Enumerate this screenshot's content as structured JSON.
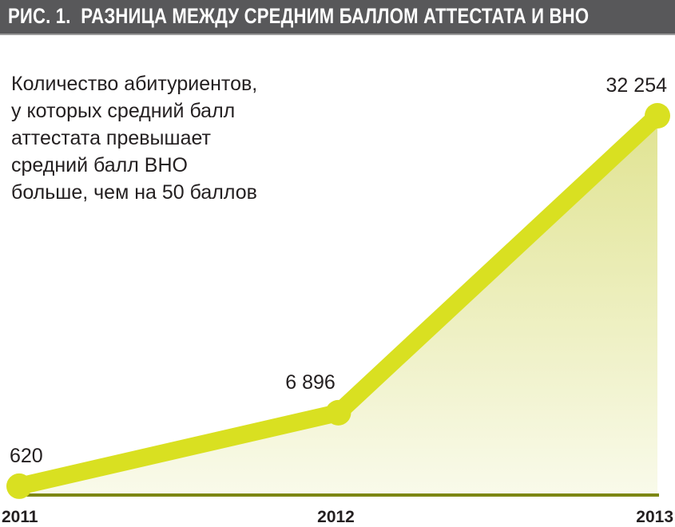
{
  "figure_label": "РИС. 1.",
  "chart_data": {
    "type": "area",
    "title": "РАЗНИЦА МЕЖДУ СРЕДНИМ БАЛЛОМ АТТЕСТАТА И ВНО",
    "annotation_lines": [
      "Количество абитуриентов,",
      "у которых средний балл",
      "аттестата превышает",
      "средний балл ВНО",
      "больше, чем на 50 баллов"
    ],
    "categories": [
      "2011",
      "2012",
      "2013"
    ],
    "values": [
      620,
      6896,
      32254
    ],
    "data_labels": [
      "620",
      "6 896",
      "32 254"
    ],
    "ylim": [
      0,
      32254
    ],
    "grid": false,
    "colors": {
      "line": "#d9e021",
      "fill_top": "#e3e6a0",
      "fill_bottom": "#f8f9e4",
      "baseline": "#7d8714",
      "title_bar": "#58585a"
    }
  }
}
